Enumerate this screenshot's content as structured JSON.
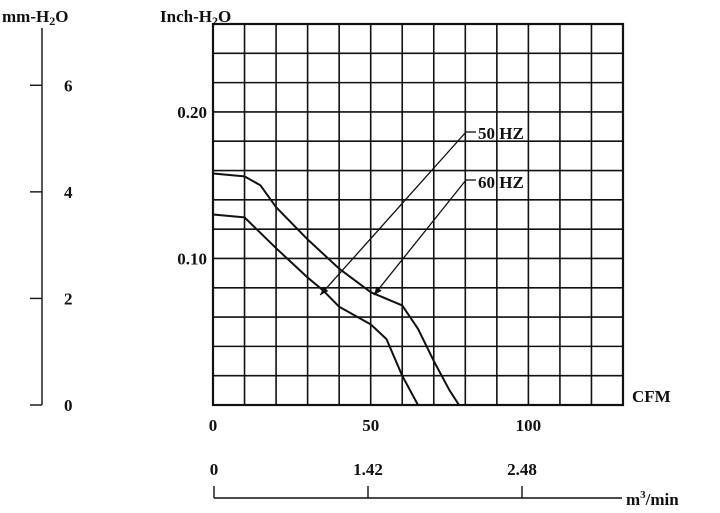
{
  "chart_data": {
    "type": "line",
    "units": {
      "left_axis": "mm-H2O",
      "primary_y": "Inch-H2O",
      "primary_x": "CFM",
      "secondary_x": "m3/min"
    },
    "left_axis": {
      "label_text": "mm-H",
      "label_sub": "2",
      "label_tail": "O",
      "ticks": [
        0,
        2,
        4,
        6
      ],
      "range": [
        0,
        7.15
      ]
    },
    "primary_y": {
      "label_text": "Inch-H",
      "label_sub": "2",
      "label_tail": "O",
      "ticks": [
        0.1,
        0.2
      ],
      "tick_labels": [
        "0.10",
        "0.20"
      ],
      "range": [
        0,
        0.26
      ]
    },
    "primary_x": {
      "label": "CFM",
      "ticks": [
        0,
        50,
        100
      ],
      "tick_labels": [
        "0",
        "50",
        "100"
      ],
      "range": [
        0,
        130
      ]
    },
    "secondary_x": {
      "label_text": "m",
      "label_sup": "3",
      "label_tail": "/min",
      "ticks": [
        0,
        1.42,
        2.48
      ],
      "tick_labels": [
        "0",
        "1.42",
        "2.48"
      ]
    },
    "grid": true,
    "grid_x_step": 10,
    "grid_y_step": 0.02,
    "series": [
      {
        "name": "50 HZ",
        "x": [
          0,
          10,
          20,
          30,
          35,
          40,
          50,
          55,
          60,
          65
        ],
        "y": [
          0.13,
          0.128,
          0.107,
          0.087,
          0.078,
          0.067,
          0.055,
          0.045,
          0.02,
          0.0
        ]
      },
      {
        "name": "60 HZ",
        "x": [
          0,
          10,
          15,
          20,
          30,
          40,
          50,
          60,
          65,
          70,
          75,
          78
        ],
        "y": [
          0.158,
          0.156,
          0.15,
          0.135,
          0.113,
          0.093,
          0.077,
          0.068,
          0.052,
          0.03,
          0.01,
          0.0
        ]
      }
    ],
    "annotations": [
      {
        "text": "50 HZ",
        "points_to_series": "50 HZ",
        "at_x": 34,
        "at_y": 0.075
      },
      {
        "text": "60 HZ",
        "points_to_series": "60 HZ",
        "at_x": 51,
        "at_y": 0.075
      }
    ]
  }
}
